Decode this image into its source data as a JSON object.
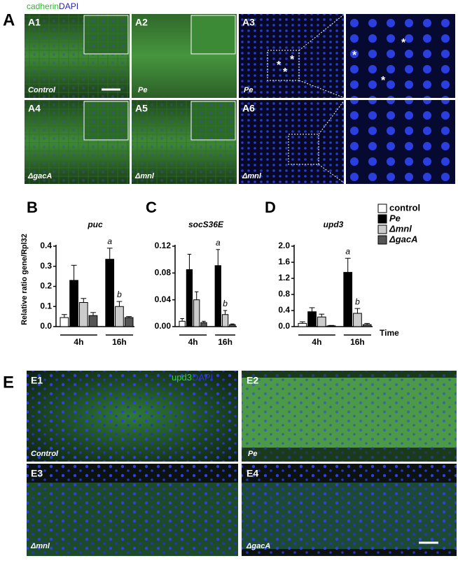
{
  "panel_a": {
    "label": "A",
    "stain": [
      "cadherin",
      "DAPI"
    ],
    "marker": "*",
    "images": [
      {
        "label": "A1",
        "caption": "Control"
      },
      {
        "label": "A2",
        "caption": "Pe"
      },
      {
        "label": "A3",
        "caption": "Pe"
      },
      {
        "label": "A4",
        "caption": "ΔgacA"
      },
      {
        "label": "A5",
        "caption": "Δmnl"
      },
      {
        "label": "A6",
        "caption": "Δmnl"
      }
    ]
  },
  "chart_data": [
    {
      "type": "bar",
      "panel": "B",
      "title": "puc",
      "ylabel": "Relative ratio gene/Rpl32",
      "categories": [
        "4h",
        "16h"
      ],
      "ylim": [
        0,
        0.4
      ],
      "yticks": [
        {
          "value": 0,
          "label": "0.0"
        },
        0.1,
        0.2,
        0.3,
        0.4
      ],
      "series": [
        {
          "color": "#ffffff",
          "values": [
            0.045,
            null
          ],
          "errors": [
            0.015,
            null
          ]
        },
        {
          "color": "#000000",
          "values": [
            0.23,
            0.335
          ],
          "errors": [
            0.075,
            0.055
          ]
        },
        {
          "color": "#cccccc",
          "values": [
            0.12,
            0.1
          ],
          "errors": [
            0.02,
            0.025
          ]
        },
        {
          "color": "#555555",
          "values": [
            0.055,
            0.045
          ],
          "errors": [
            0.015,
            0.005
          ]
        }
      ],
      "annotations": [
        "a",
        "b"
      ]
    },
    {
      "type": "bar",
      "panel": "C",
      "title": "socS36E",
      "categories": [
        "4h",
        "16h"
      ],
      "ylim": [
        0,
        0.12
      ],
      "yticks": [
        {
          "value": 0,
          "label": "0.00"
        },
        0.04,
        0.08,
        0.12
      ],
      "series": [
        {
          "color": "#ffffff",
          "values": [
            0.008,
            null
          ],
          "errors": [
            0.004,
            null
          ]
        },
        {
          "color": "#000000",
          "values": [
            0.085,
            0.091
          ],
          "errors": [
            0.023,
            0.024
          ]
        },
        {
          "color": "#cccccc",
          "values": [
            0.04,
            0.018
          ],
          "errors": [
            0.012,
            0.006
          ]
        },
        {
          "color": "#555555",
          "values": [
            0.006,
            0.003
          ],
          "errors": [
            0.002,
            0.001
          ]
        }
      ],
      "annotations": [
        "a",
        "b"
      ]
    },
    {
      "type": "bar",
      "panel": "D",
      "title": "upd3",
      "xlabel": "Time",
      "categories": [
        "4h",
        "16h"
      ],
      "ylim": [
        0,
        2
      ],
      "yticks": [
        {
          "value": 0,
          "label": "0.0"
        },
        0.4,
        0.8,
        1.2,
        1.6,
        {
          "value": 2,
          "label": "2.0"
        }
      ],
      "series": [
        {
          "name": "control",
          "color": "#ffffff",
          "values": [
            0.08,
            null
          ],
          "errors": [
            0.04,
            null
          ]
        },
        {
          "name": "Pe",
          "color": "#000000",
          "values": [
            0.37,
            1.35
          ],
          "errors": [
            0.1,
            0.35
          ]
        },
        {
          "name": "Δmnl",
          "color": "#cccccc",
          "values": [
            0.24,
            0.33
          ],
          "errors": [
            0.07,
            0.12
          ]
        },
        {
          "name": "ΔgacA",
          "color": "#555555",
          "values": [
            0.02,
            0.05
          ],
          "errors": [
            0.01,
            0.03
          ]
        }
      ],
      "annotations": [
        "a",
        "b"
      ]
    }
  ],
  "panel_e": {
    "label": "E",
    "stain": [
      "upd3",
      "DAPI"
    ],
    "images": [
      {
        "label": "E1",
        "caption": "Control"
      },
      {
        "label": "E2",
        "caption": "Pe"
      },
      {
        "label": "E3",
        "caption": "Δmnl"
      },
      {
        "label": "E4",
        "caption": "ΔgacA"
      }
    ]
  }
}
